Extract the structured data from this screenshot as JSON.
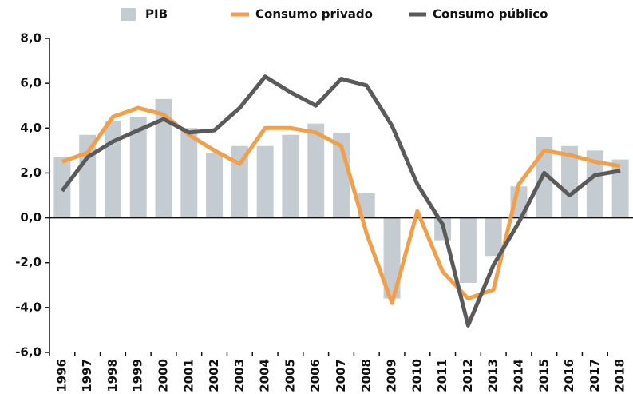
{
  "chart_data": {
    "type": "bar",
    "categories": [
      "1996",
      "1997",
      "1998",
      "1999",
      "2000",
      "2001",
      "2002",
      "2003",
      "2004",
      "2005",
      "2006",
      "2007",
      "2008",
      "2009",
      "2010",
      "2011",
      "2012",
      "2013",
      "2014",
      "2015",
      "2016",
      "2017",
      "2018"
    ],
    "series": [
      {
        "name": "PIB",
        "type": "bar",
        "color": "#c5ccd1",
        "values": [
          2.7,
          3.7,
          4.3,
          4.5,
          5.3,
          4.0,
          2.9,
          3.2,
          3.2,
          3.7,
          4.2,
          3.8,
          1.1,
          -3.6,
          0.0,
          -1.0,
          -2.9,
          -1.7,
          1.4,
          3.6,
          3.2,
          3.0,
          2.6
        ]
      },
      {
        "name": "Consumo privado",
        "type": "line",
        "color": "#f0a04b",
        "values": [
          2.5,
          2.9,
          4.5,
          4.9,
          4.6,
          3.7,
          3.0,
          2.4,
          4.0,
          4.0,
          3.8,
          3.2,
          -0.7,
          -3.8,
          0.3,
          -2.4,
          -3.6,
          -3.2,
          1.5,
          3.0,
          2.8,
          2.5,
          2.3
        ]
      },
      {
        "name": "Consumo público",
        "type": "line",
        "color": "#5a5a5a",
        "values": [
          1.2,
          2.7,
          3.4,
          3.9,
          4.4,
          3.8,
          3.9,
          4.9,
          6.3,
          5.6,
          5.0,
          6.2,
          5.9,
          4.1,
          1.5,
          -0.3,
          -4.8,
          -2.1,
          -0.2,
          2.0,
          1.0,
          1.9,
          2.1
        ]
      }
    ],
    "ylim": [
      -6,
      8
    ],
    "yticks": [
      {
        "value": -6,
        "label": "-6,0"
      },
      {
        "value": -4,
        "label": "-4,0"
      },
      {
        "value": -2,
        "label": "-2,0"
      },
      {
        "value": 0,
        "label": "0,0"
      },
      {
        "value": 2,
        "label": "2,0"
      },
      {
        "value": 4,
        "label": "4,0"
      },
      {
        "value": 6,
        "label": "6,0"
      },
      {
        "value": 8,
        "label": "8,0"
      }
    ],
    "grid": false
  }
}
